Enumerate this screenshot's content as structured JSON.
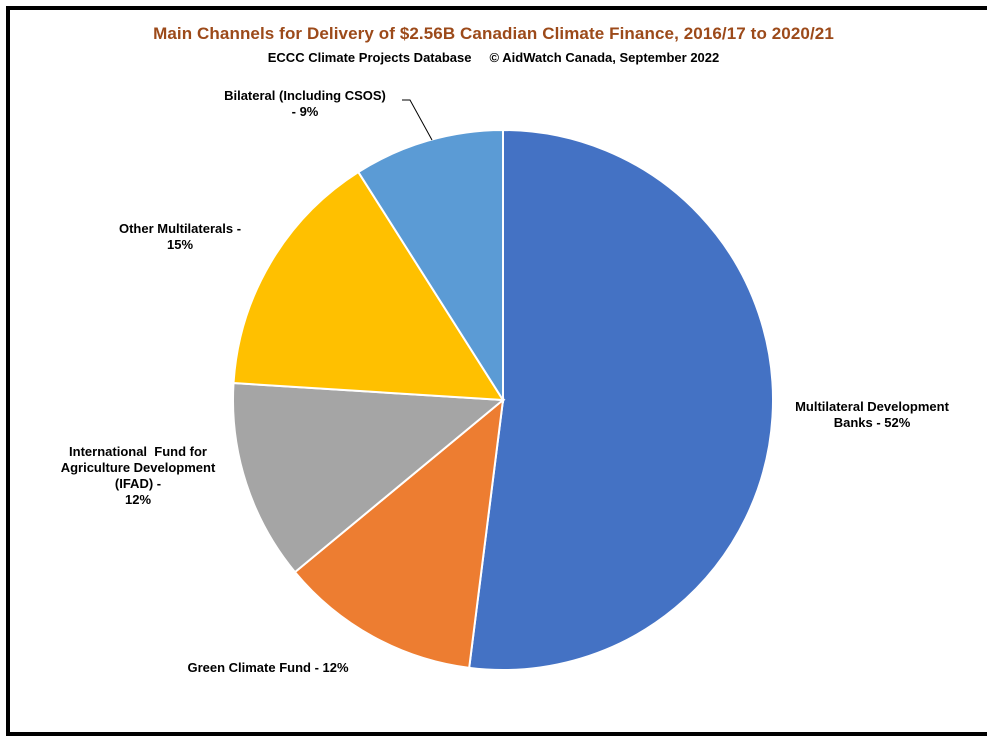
{
  "chart_data": {
    "type": "pie",
    "title": "Main Channels for Delivery of $2.56B Canadian Climate Finance, 2016/17 to 2020/21",
    "subtitle": "ECCC Climate Projects Database     © AidWatch Canada, September 2022",
    "slices": [
      {
        "name": "Multilateral Development Banks",
        "value": 52,
        "color": "#4472c4",
        "label_lines": [
          "Multilateral Development",
          "Banks - 52%"
        ]
      },
      {
        "name": "Green Climate Fund",
        "value": 12,
        "color": "#ed7d31",
        "label_lines": [
          "Green Climate Fund - 12%"
        ]
      },
      {
        "name": "International Fund for Agriculture Development (IFAD)",
        "value": 12,
        "color": "#a5a5a5",
        "label_lines": [
          "International  Fund for",
          "Agriculture Development",
          "(IFAD) -",
          "12%"
        ]
      },
      {
        "name": "Other Multilaterals",
        "value": 15,
        "color": "#ffc000",
        "label_lines": [
          "Other Multilaterals -",
          "15%"
        ]
      },
      {
        "name": "Bilateral (Including CSOS)",
        "value": 9,
        "color": "#5b9bd5",
        "label_lines": [
          "Bilateral (Including CSOS)",
          "- 9%"
        ]
      }
    ]
  }
}
